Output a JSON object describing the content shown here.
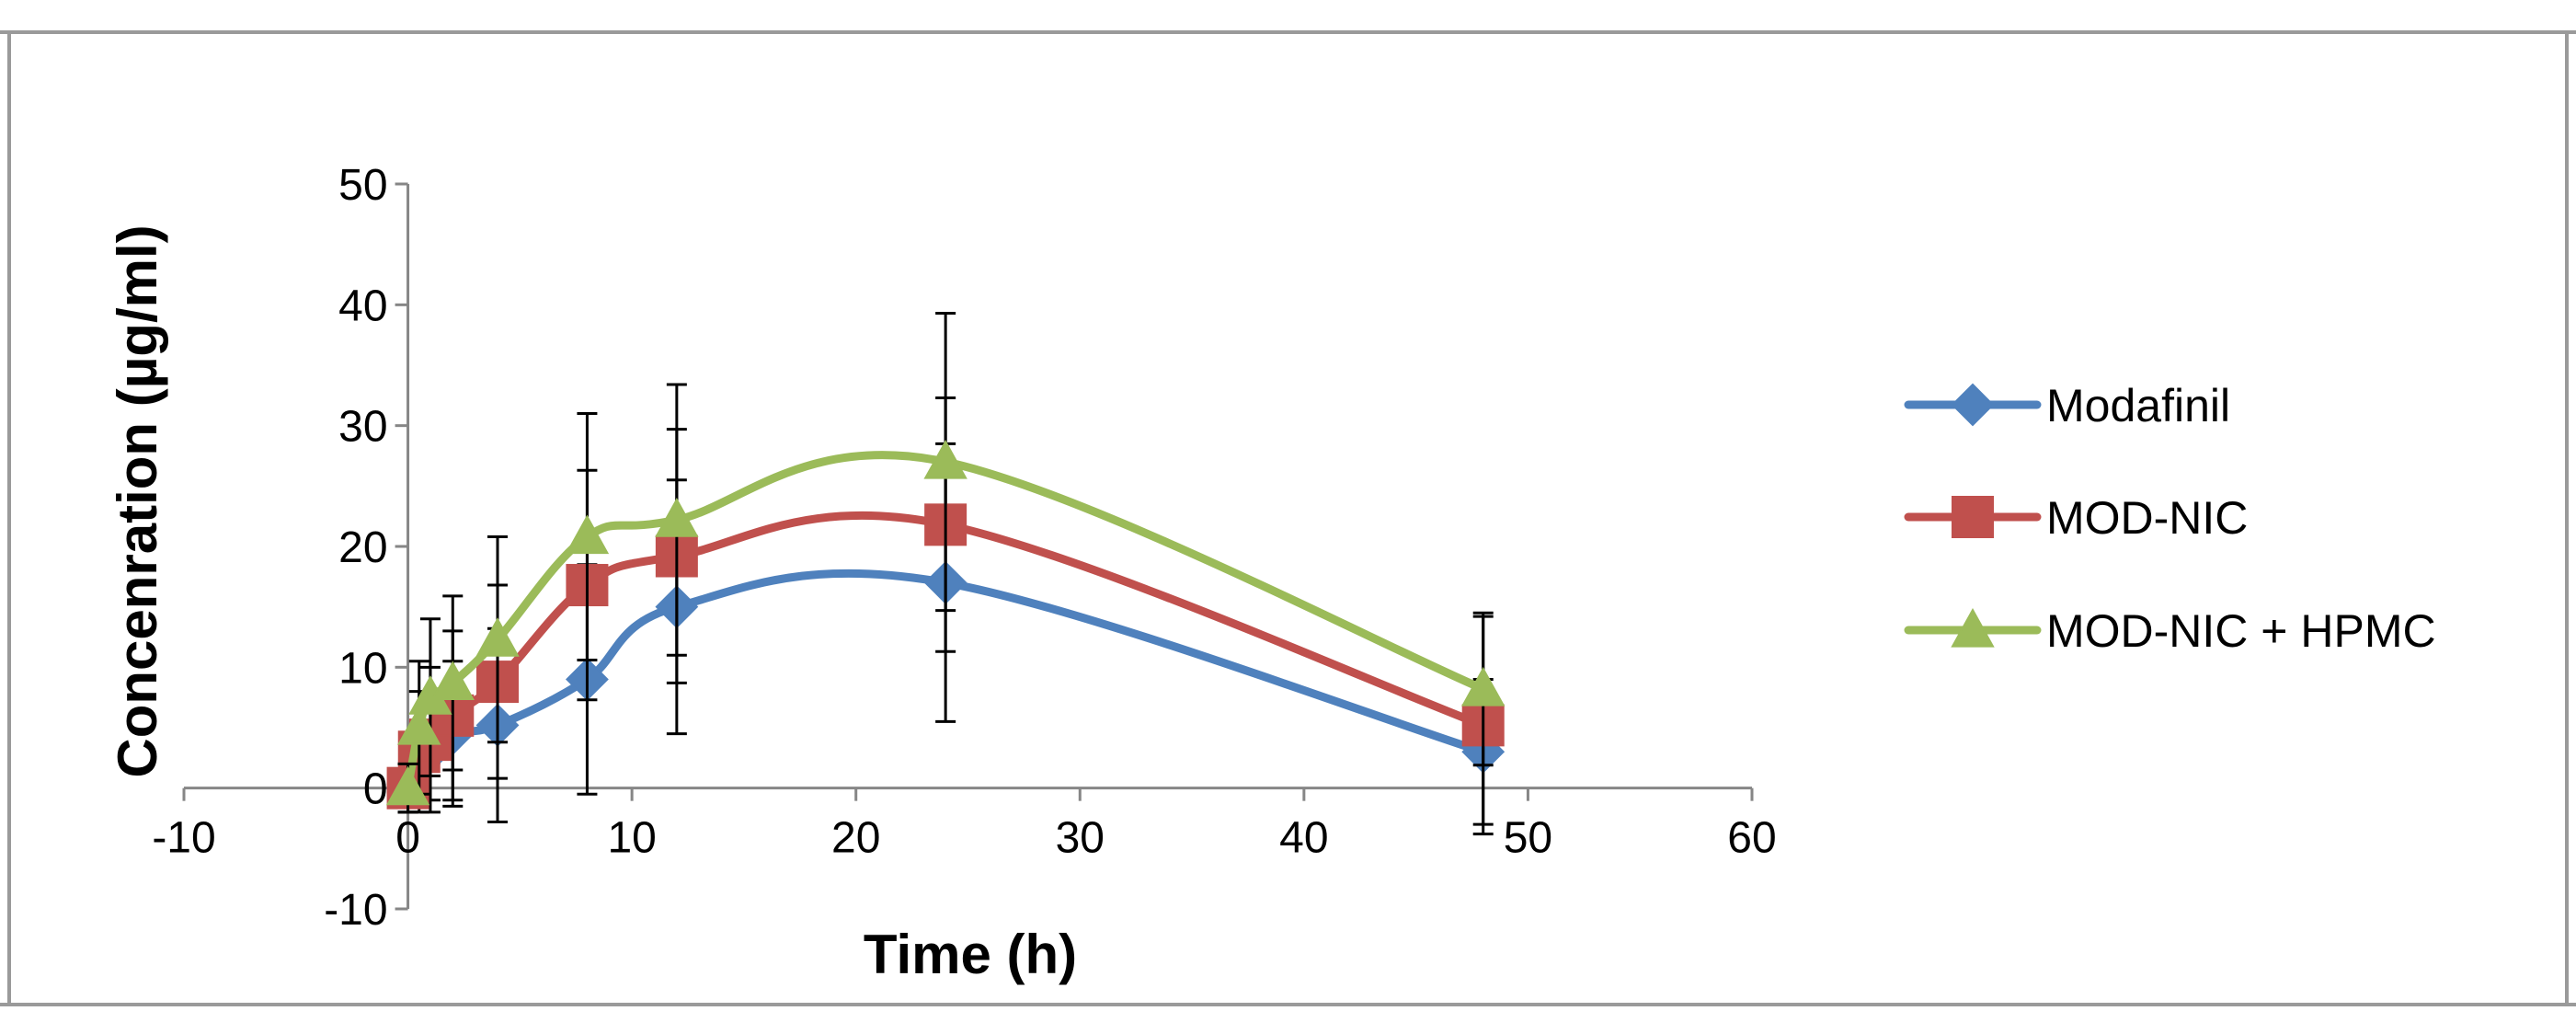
{
  "chart_data": {
    "type": "line",
    "title": "",
    "xlabel": "Time (h)",
    "ylabel": "Concenration (µg/ml)",
    "xlim": [
      -10,
      60
    ],
    "ylim": [
      -10,
      50
    ],
    "x_ticks": [
      -10,
      0,
      10,
      20,
      30,
      40,
      50,
      60
    ],
    "y_ticks": [
      -10,
      0,
      10,
      20,
      30,
      40,
      50
    ],
    "x_tick_labels": [
      "-10",
      "0",
      "10",
      "20",
      "30",
      "40",
      "50",
      "60"
    ],
    "y_tick_labels": [
      "-10",
      "0",
      "10",
      "20",
      "30",
      "40",
      "50"
    ],
    "grid": false,
    "legend_position": "right",
    "series": [
      {
        "name": "Modafinil",
        "color": "#4f81bd",
        "marker": "diamond",
        "x": [
          0,
          0.5,
          1,
          2,
          4,
          8,
          12,
          24,
          48
        ],
        "y": [
          0,
          2,
          3,
          4.5,
          5.2,
          9,
          15,
          17,
          3
        ],
        "error": [
          2,
          3,
          4,
          6,
          8,
          9.5,
          10.5,
          11.5,
          6
        ]
      },
      {
        "name": "MOD-NIC",
        "color": "#c0504d",
        "marker": "square",
        "x": [
          0,
          0.5,
          1,
          2,
          4,
          8,
          12,
          24,
          48
        ],
        "y": [
          0,
          3,
          4,
          6,
          8.8,
          16.8,
          19.2,
          21.8,
          5.2
        ],
        "error": [
          2,
          5,
          6,
          7,
          8,
          9.5,
          10.5,
          10.5,
          9
        ]
      },
      {
        "name": "MOD-NIC + HPMC",
        "color": "#9bbb59",
        "marker": "triangle",
        "x": [
          0,
          0.5,
          1,
          2,
          4,
          8,
          12,
          24,
          48
        ],
        "y": [
          0,
          5,
          7.5,
          8.7,
          12.3,
          20.8,
          22.2,
          27,
          8.2
        ],
        "error": [
          2,
          5.5,
          6.5,
          7.2,
          8.5,
          10.2,
          11.2,
          12.3,
          6.3
        ]
      }
    ]
  }
}
